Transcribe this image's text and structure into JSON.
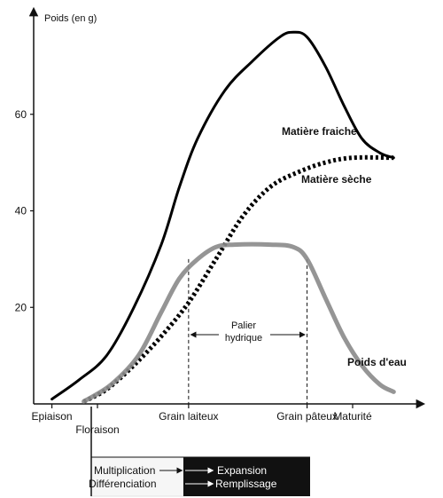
{
  "chart_data": {
    "type": "line",
    "ylabel": "Poids (en g)",
    "ylim": [
      0,
      80
    ],
    "y_ticks": [
      20,
      40,
      60
    ],
    "stages": [
      {
        "key": "epiaison",
        "label": "Epiaison",
        "x": 0
      },
      {
        "key": "floraison",
        "label": "Floraison",
        "x": 1
      },
      {
        "key": "grain_laiteux",
        "label": "Grain laiteux",
        "x": 3
      },
      {
        "key": "grain_pateux",
        "label": "Grain pâteux",
        "x": 5.6
      },
      {
        "key": "maturite",
        "label": "Maturité",
        "x": 6.6
      }
    ],
    "xlim": [
      -0.4,
      8
    ],
    "series": [
      {
        "name": "Matière fraiche",
        "style": "solid",
        "color": "#000000",
        "points": [
          [
            0,
            1
          ],
          [
            0.6,
            5
          ],
          [
            1.2,
            10
          ],
          [
            1.8,
            20
          ],
          [
            2.4,
            33
          ],
          [
            2.8,
            45
          ],
          [
            3.2,
            55
          ],
          [
            3.8,
            65
          ],
          [
            4.4,
            71
          ],
          [
            5,
            76
          ],
          [
            5.3,
            77
          ],
          [
            5.6,
            76
          ],
          [
            6,
            70
          ],
          [
            6.4,
            62
          ],
          [
            6.8,
            55
          ],
          [
            7.2,
            52
          ],
          [
            7.5,
            51
          ]
        ]
      },
      {
        "name": "Matière sèche",
        "style": "dotted",
        "color": "#000000",
        "points": [
          [
            0.7,
            0.5
          ],
          [
            1.2,
            3
          ],
          [
            1.8,
            8
          ],
          [
            2.4,
            14
          ],
          [
            3,
            21
          ],
          [
            3.6,
            30
          ],
          [
            4.2,
            39
          ],
          [
            4.8,
            45
          ],
          [
            5.4,
            48
          ],
          [
            6,
            50
          ],
          [
            6.6,
            51
          ],
          [
            7.5,
            51
          ]
        ]
      },
      {
        "name": "Poids d'eau",
        "style": "grey",
        "color": "#8a8a8a",
        "points": [
          [
            0.7,
            0.5
          ],
          [
            1.3,
            4
          ],
          [
            1.9,
            10
          ],
          [
            2.4,
            19
          ],
          [
            2.8,
            26
          ],
          [
            3.2,
            30
          ],
          [
            3.6,
            32.5
          ],
          [
            4,
            33
          ],
          [
            4.8,
            33
          ],
          [
            5.3,
            32.5
          ],
          [
            5.6,
            30
          ],
          [
            6,
            22
          ],
          [
            6.4,
            14
          ],
          [
            6.8,
            8
          ],
          [
            7.2,
            4
          ],
          [
            7.5,
            2.5
          ]
        ]
      }
    ],
    "annotations": {
      "palier_line1": "Palier",
      "palier_line2": "hydrique"
    }
  },
  "phases": {
    "left_line1": "Multiplication",
    "left_line2": "Différenciation",
    "right_line1": "Expansion",
    "right_line2": "Remplissage"
  }
}
